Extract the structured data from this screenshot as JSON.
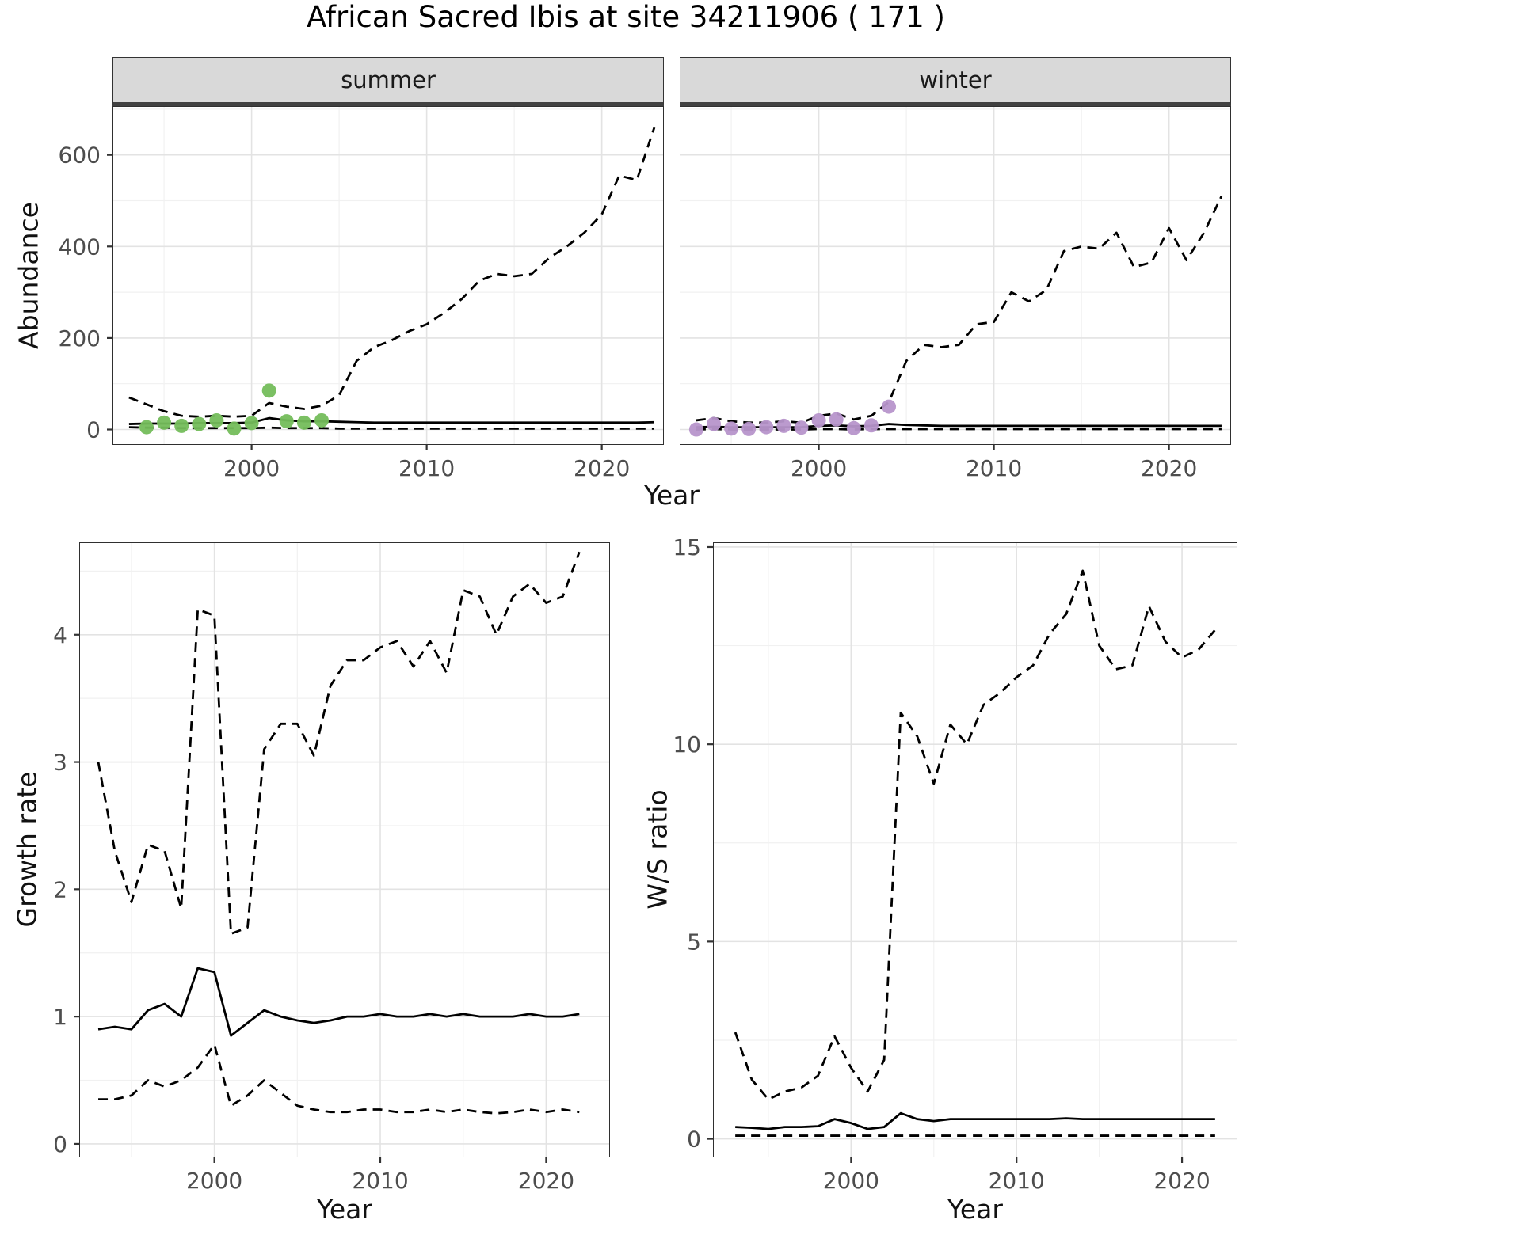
{
  "title": "African Sacred Ibis at site 34211906 ( 171 )",
  "colors": {
    "summer_point": "#74bd5b",
    "winter_point": "#b795cb",
    "line": "#000000",
    "grid_major": "#e3e3e3",
    "grid_minor": "#f1f1f1",
    "strip_bg": "#d9d9d9",
    "axis_text": "#4d4d4d"
  },
  "chart_data": [
    {
      "id": "abundance-summer",
      "type": "line",
      "facet_label": "summer",
      "xlabel": "Year",
      "ylabel": "Abundance",
      "xlim": [
        1992.1,
        2023.5
      ],
      "ylim": [
        -32,
        705
      ],
      "xticks": [
        2000,
        2010,
        2020
      ],
      "yticks": [
        0,
        200,
        400,
        600
      ],
      "xticks_minor": [
        1995,
        2005,
        2015
      ],
      "yticks_minor": [
        100,
        300,
        500,
        700
      ],
      "show_y_axis": true,
      "series": [
        {
          "name": "upper_ci",
          "kind": "dashed",
          "x": [
            1993,
            1994,
            1995,
            1996,
            1997,
            1998,
            1999,
            2000,
            2001,
            2002,
            2003,
            2004,
            2005,
            2006,
            2007,
            2008,
            2009,
            2010,
            2011,
            2012,
            2013,
            2014,
            2015,
            2016,
            2017,
            2018,
            2019,
            2020,
            2021,
            2022,
            2023
          ],
          "y": [
            70,
            55,
            40,
            30,
            28,
            30,
            28,
            30,
            58,
            50,
            45,
            52,
            75,
            150,
            180,
            195,
            215,
            230,
            255,
            285,
            325,
            340,
            335,
            340,
            375,
            400,
            430,
            470,
            555,
            545,
            660
          ]
        },
        {
          "name": "median",
          "kind": "solid",
          "x": [
            1993,
            1994,
            1995,
            1996,
            1997,
            1998,
            1999,
            2000,
            2001,
            2002,
            2003,
            2004,
            2005,
            2006,
            2007,
            2008,
            2009,
            2010,
            2011,
            2012,
            2013,
            2014,
            2015,
            2016,
            2017,
            2018,
            2019,
            2020,
            2021,
            2022,
            2023
          ],
          "y": [
            12,
            13,
            13,
            13,
            14,
            14,
            14,
            15,
            25,
            20,
            18,
            18,
            17,
            16,
            15,
            15,
            15,
            15,
            15,
            15,
            15,
            15,
            15,
            15,
            15,
            15,
            15,
            15,
            15,
            15,
            16
          ]
        },
        {
          "name": "lower_ci",
          "kind": "dashed",
          "x": [
            1993,
            1994,
            1995,
            1996,
            1997,
            1998,
            1999,
            2000,
            2001,
            2002,
            2003,
            2004,
            2005,
            2006,
            2007,
            2008,
            2009,
            2010,
            2011,
            2012,
            2013,
            2014,
            2015,
            2016,
            2017,
            2018,
            2019,
            2020,
            2021,
            2022,
            2023
          ],
          "y": [
            5,
            4,
            4,
            3,
            3,
            3,
            3,
            3,
            4,
            3,
            3,
            3,
            2,
            2,
            2,
            2,
            2,
            2,
            2,
            2,
            2,
            2,
            2,
            2,
            2,
            2,
            2,
            2,
            2,
            2,
            2
          ]
        },
        {
          "name": "observations",
          "kind": "points",
          "color_key": "summer_point",
          "x": [
            1994,
            1995,
            1996,
            1997,
            1998,
            1999,
            2000,
            2001,
            2002,
            2003,
            2004
          ],
          "y": [
            5,
            15,
            8,
            12,
            20,
            2,
            14,
            85,
            18,
            15,
            20
          ]
        }
      ]
    },
    {
      "id": "abundance-winter",
      "type": "line",
      "facet_label": "winter",
      "xlabel": "Year",
      "ylabel": "Abundance",
      "xlim": [
        1992.1,
        2023.5
      ],
      "ylim": [
        -32,
        705
      ],
      "xticks": [
        2000,
        2010,
        2020
      ],
      "yticks": [
        0,
        200,
        400,
        600
      ],
      "xticks_minor": [
        1995,
        2005,
        2015
      ],
      "yticks_minor": [
        100,
        300,
        500,
        700
      ],
      "show_y_axis": false,
      "series": [
        {
          "name": "upper_ci",
          "kind": "dashed",
          "x": [
            1993,
            1994,
            1995,
            1996,
            1997,
            1998,
            1999,
            2000,
            2001,
            2002,
            2003,
            2004,
            2005,
            2006,
            2007,
            2008,
            2009,
            2010,
            2011,
            2012,
            2013,
            2014,
            2015,
            2016,
            2017,
            2018,
            2019,
            2020,
            2021,
            2022,
            2023
          ],
          "y": [
            20,
            25,
            18,
            15,
            15,
            18,
            15,
            30,
            35,
            22,
            30,
            60,
            150,
            185,
            180,
            185,
            230,
            235,
            300,
            280,
            305,
            390,
            400,
            395,
            430,
            355,
            365,
            440,
            370,
            430,
            510
          ]
        },
        {
          "name": "median",
          "kind": "solid",
          "x": [
            1993,
            1994,
            1995,
            1996,
            1997,
            1998,
            1999,
            2000,
            2001,
            2002,
            2003,
            2004,
            2005,
            2006,
            2007,
            2008,
            2009,
            2010,
            2011,
            2012,
            2013,
            2014,
            2015,
            2016,
            2017,
            2018,
            2019,
            2020,
            2021,
            2022,
            2023
          ],
          "y": [
            5,
            6,
            5,
            5,
            5,
            5,
            5,
            8,
            9,
            7,
            8,
            12,
            10,
            9,
            8,
            8,
            8,
            8,
            8,
            8,
            8,
            8,
            8,
            8,
            8,
            8,
            8,
            8,
            8,
            8,
            8
          ]
        },
        {
          "name": "lower_ci",
          "kind": "dashed",
          "x": [
            1993,
            1994,
            1995,
            1996,
            1997,
            1998,
            1999,
            2000,
            2001,
            2002,
            2003,
            2004,
            2005,
            2006,
            2007,
            2008,
            2009,
            2010,
            2011,
            2012,
            2013,
            2014,
            2015,
            2016,
            2017,
            2018,
            2019,
            2020,
            2021,
            2022,
            2023
          ],
          "y": [
            0,
            1,
            0,
            0,
            0,
            0,
            0,
            1,
            1,
            0,
            1,
            1,
            1,
            1,
            1,
            1,
            1,
            1,
            1,
            1,
            1,
            1,
            1,
            1,
            1,
            1,
            1,
            1,
            1,
            1,
            1
          ]
        },
        {
          "name": "observations",
          "kind": "points",
          "color_key": "winter_point",
          "x": [
            1993,
            1994,
            1995,
            1996,
            1997,
            1998,
            1999,
            2000,
            2001,
            2002,
            2003,
            2004
          ],
          "y": [
            0,
            12,
            2,
            1,
            5,
            8,
            4,
            20,
            22,
            3,
            9,
            50
          ]
        }
      ]
    },
    {
      "id": "growth-rate",
      "type": "line",
      "facet_label": "",
      "xlabel": "Year",
      "ylabel": "Growth rate",
      "xlim": [
        1991.9,
        2023.8
      ],
      "ylim": [
        -0.1,
        4.72
      ],
      "xticks": [
        2000,
        2010,
        2020
      ],
      "yticks": [
        0,
        1,
        2,
        3,
        4
      ],
      "xticks_minor": [
        1995,
        2005,
        2015
      ],
      "yticks_minor": [
        0.5,
        1.5,
        2.5,
        3.5,
        4.5
      ],
      "show_y_axis": true,
      "series": [
        {
          "name": "upper_ci",
          "kind": "dashed",
          "x": [
            1993,
            1994,
            1995,
            1996,
            1997,
            1998,
            1999,
            2000,
            2001,
            2002,
            2003,
            2004,
            2005,
            2006,
            2007,
            2008,
            2009,
            2010,
            2011,
            2012,
            2013,
            2014,
            2015,
            2016,
            2017,
            2018,
            2019,
            2020,
            2021,
            2022
          ],
          "y": [
            3.0,
            2.3,
            1.9,
            2.35,
            2.3,
            1.85,
            4.2,
            4.15,
            1.65,
            1.7,
            3.1,
            3.3,
            3.3,
            3.05,
            3.6,
            3.8,
            3.8,
            3.9,
            3.95,
            3.75,
            3.95,
            3.7,
            4.35,
            4.3,
            4.0,
            4.3,
            4.4,
            4.25,
            4.3,
            4.65
          ]
        },
        {
          "name": "median",
          "kind": "solid",
          "x": [
            1993,
            1994,
            1995,
            1996,
            1997,
            1998,
            1999,
            2000,
            2001,
            2002,
            2003,
            2004,
            2005,
            2006,
            2007,
            2008,
            2009,
            2010,
            2011,
            2012,
            2013,
            2014,
            2015,
            2016,
            2017,
            2018,
            2019,
            2020,
            2021,
            2022
          ],
          "y": [
            0.9,
            0.92,
            0.9,
            1.05,
            1.1,
            1.0,
            1.38,
            1.35,
            0.85,
            0.95,
            1.05,
            1.0,
            0.97,
            0.95,
            0.97,
            1.0,
            1.0,
            1.02,
            1.0,
            1.0,
            1.02,
            1.0,
            1.02,
            1.0,
            1.0,
            1.0,
            1.02,
            1.0,
            1.0,
            1.02
          ]
        },
        {
          "name": "lower_ci",
          "kind": "dashed",
          "x": [
            1993,
            1994,
            1995,
            1996,
            1997,
            1998,
            1999,
            2000,
            2001,
            2002,
            2003,
            2004,
            2005,
            2006,
            2007,
            2008,
            2009,
            2010,
            2011,
            2012,
            2013,
            2014,
            2015,
            2016,
            2017,
            2018,
            2019,
            2020,
            2021,
            2022
          ],
          "y": [
            0.35,
            0.35,
            0.38,
            0.5,
            0.45,
            0.5,
            0.6,
            0.78,
            0.3,
            0.38,
            0.5,
            0.4,
            0.3,
            0.27,
            0.25,
            0.25,
            0.27,
            0.27,
            0.25,
            0.25,
            0.27,
            0.25,
            0.27,
            0.25,
            0.24,
            0.25,
            0.27,
            0.25,
            0.27,
            0.25
          ]
        }
      ]
    },
    {
      "id": "ws-ratio",
      "type": "line",
      "facet_label": "",
      "xlabel": "Year",
      "ylabel": "W/S ratio",
      "xlim": [
        1991.7,
        2023.3
      ],
      "ylim": [
        -0.45,
        15.1
      ],
      "xticks": [
        2000,
        2010,
        2020
      ],
      "yticks": [
        0,
        5,
        10,
        15
      ],
      "xticks_minor": [
        1995,
        2005,
        2015
      ],
      "yticks_minor": [
        2.5,
        7.5,
        12.5
      ],
      "show_y_axis": true,
      "series": [
        {
          "name": "upper_ci",
          "kind": "dashed",
          "x": [
            1993,
            1994,
            1995,
            1996,
            1997,
            1998,
            1999,
            2000,
            2001,
            2002,
            2003,
            2004,
            2005,
            2006,
            2007,
            2008,
            2009,
            2010,
            2011,
            2012,
            2013,
            2014,
            2015,
            2016,
            2017,
            2018,
            2019,
            2020,
            2021,
            2022
          ],
          "y": [
            2.7,
            1.5,
            1.0,
            1.2,
            1.3,
            1.6,
            2.6,
            1.8,
            1.2,
            2.0,
            10.8,
            10.2,
            9.0,
            10.5,
            10.0,
            11.0,
            11.3,
            11.7,
            12.0,
            12.8,
            13.3,
            14.4,
            12.5,
            11.9,
            12.0,
            13.5,
            12.6,
            12.2,
            12.4,
            12.9
          ]
        },
        {
          "name": "median",
          "kind": "solid",
          "x": [
            1993,
            1994,
            1995,
            1996,
            1997,
            1998,
            1999,
            2000,
            2001,
            2002,
            2003,
            2004,
            2005,
            2006,
            2007,
            2008,
            2009,
            2010,
            2011,
            2012,
            2013,
            2014,
            2015,
            2016,
            2017,
            2018,
            2019,
            2020,
            2021,
            2022
          ],
          "y": [
            0.3,
            0.28,
            0.25,
            0.3,
            0.3,
            0.32,
            0.5,
            0.4,
            0.25,
            0.3,
            0.65,
            0.5,
            0.45,
            0.5,
            0.5,
            0.5,
            0.5,
            0.5,
            0.5,
            0.5,
            0.52,
            0.5,
            0.5,
            0.5,
            0.5,
            0.5,
            0.5,
            0.5,
            0.5,
            0.5
          ]
        },
        {
          "name": "lower_ci",
          "kind": "dashed",
          "x": [
            1993,
            1994,
            1995,
            1996,
            1997,
            1998,
            1999,
            2000,
            2001,
            2002,
            2003,
            2004,
            2005,
            2006,
            2007,
            2008,
            2009,
            2010,
            2011,
            2012,
            2013,
            2014,
            2015,
            2016,
            2017,
            2018,
            2019,
            2020,
            2021,
            2022
          ],
          "y": [
            0.08,
            0.08,
            0.08,
            0.08,
            0.08,
            0.08,
            0.08,
            0.08,
            0.08,
            0.08,
            0.08,
            0.08,
            0.08,
            0.08,
            0.08,
            0.08,
            0.08,
            0.08,
            0.08,
            0.08,
            0.08,
            0.08,
            0.08,
            0.08,
            0.08,
            0.08,
            0.08,
            0.08,
            0.08,
            0.08
          ]
        }
      ]
    }
  ]
}
